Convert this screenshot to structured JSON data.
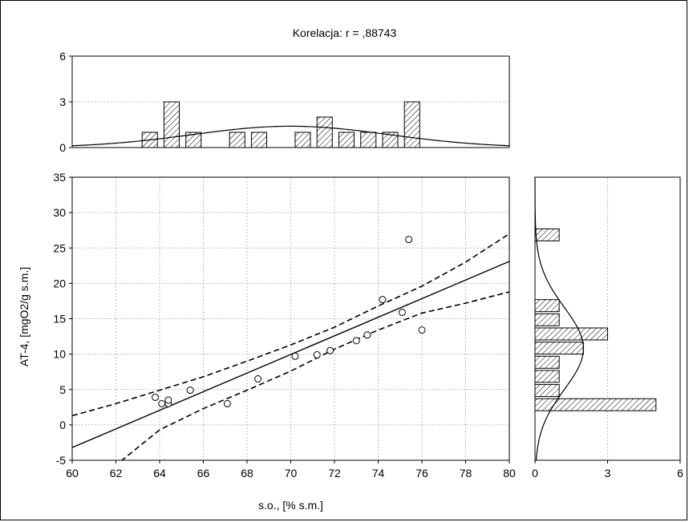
{
  "chart_data": {
    "type": "scatter",
    "title": "Korelacja: r =   ,88743",
    "title_label": "Korelacja: r =",
    "r_value": ",88743",
    "xlabel": "s.o., [% s.m.]",
    "ylabel": "AT-4, [mgO2/g s.m.]",
    "xlim": [
      60,
      80
    ],
    "ylim": [
      -5,
      35
    ],
    "xticks": [
      "60",
      "62",
      "64",
      "66",
      "68",
      "70",
      "72",
      "74",
      "76",
      "78",
      "80"
    ],
    "yticks": [
      "-5",
      "0",
      "5",
      "10",
      "15",
      "20",
      "25",
      "30",
      "35"
    ],
    "grid": true,
    "points": [
      {
        "x": 63.8,
        "y": 3.9
      },
      {
        "x": 64.1,
        "y": 3.0
      },
      {
        "x": 64.4,
        "y": 3.0
      },
      {
        "x": 64.4,
        "y": 3.5
      },
      {
        "x": 65.4,
        "y": 4.9
      },
      {
        "x": 67.1,
        "y": 3.0
      },
      {
        "x": 68.5,
        "y": 6.5
      },
      {
        "x": 70.2,
        "y": 9.7
      },
      {
        "x": 71.2,
        "y": 9.9
      },
      {
        "x": 71.8,
        "y": 10.5
      },
      {
        "x": 73.0,
        "y": 11.9
      },
      {
        "x": 73.5,
        "y": 12.7
      },
      {
        "x": 74.2,
        "y": 17.7
      },
      {
        "x": 75.1,
        "y": 15.9
      },
      {
        "x": 75.4,
        "y": 26.2
      },
      {
        "x": 76.0,
        "y": 13.4
      }
    ],
    "regression_line": {
      "x": [
        60,
        80
      ],
      "y": [
        -3.2,
        23.1
      ]
    },
    "confidence_band": {
      "x": [
        60,
        62,
        64,
        66,
        68,
        70,
        72,
        74,
        76,
        78,
        80
      ],
      "upper": [
        1.3,
        3.0,
        4.9,
        6.8,
        9.0,
        11.3,
        13.8,
        16.8,
        19.6,
        23.0,
        27.0
      ],
      "lower": [
        -7.9,
        -5.7,
        -0.7,
        2.3,
        4.9,
        7.6,
        10.7,
        13.4,
        15.8,
        17.2,
        18.8
      ]
    },
    "x_histogram": {
      "ylim": [
        0,
        6
      ],
      "yticks": [
        "0",
        "3",
        "6"
      ],
      "bins": [
        {
          "x0": 63.2,
          "x1": 63.9,
          "count": 1
        },
        {
          "x0": 64.2,
          "x1": 64.9,
          "count": 3
        },
        {
          "x0": 65.2,
          "x1": 65.9,
          "count": 1
        },
        {
          "x0": 67.2,
          "x1": 67.9,
          "count": 1
        },
        {
          "x0": 68.2,
          "x1": 68.9,
          "count": 1
        },
        {
          "x0": 70.2,
          "x1": 70.9,
          "count": 1
        },
        {
          "x0": 71.2,
          "x1": 71.9,
          "count": 2
        },
        {
          "x0": 72.2,
          "x1": 72.9,
          "count": 1
        },
        {
          "x0": 73.2,
          "x1": 73.9,
          "count": 1
        },
        {
          "x0": 74.2,
          "x1": 74.9,
          "count": 1
        },
        {
          "x0": 75.2,
          "x1": 75.9,
          "count": 3
        }
      ],
      "normal_curve": {
        "mean": 70.0,
        "sd": 4.5,
        "peak": 1.4
      }
    },
    "y_histogram": {
      "xlim": [
        0,
        6
      ],
      "xticks": [
        "0",
        "3",
        "6"
      ],
      "bins": [
        {
          "y0": 2.0,
          "y1": 3.7,
          "count": 5
        },
        {
          "y0": 4.0,
          "y1": 5.7,
          "count": 1
        },
        {
          "y0": 6.0,
          "y1": 7.7,
          "count": 1
        },
        {
          "y0": 8.0,
          "y1": 9.7,
          "count": 1
        },
        {
          "y0": 10.0,
          "y1": 11.7,
          "count": 2
        },
        {
          "y0": 12.0,
          "y1": 13.7,
          "count": 3
        },
        {
          "y0": 14.0,
          "y1": 15.7,
          "count": 1
        },
        {
          "y0": 16.0,
          "y1": 17.7,
          "count": 1
        },
        {
          "y0": 26.0,
          "y1": 27.7,
          "count": 1
        }
      ],
      "normal_curve": {
        "mean": 10.8,
        "sd": 5.8,
        "peak": 2.0
      }
    }
  }
}
